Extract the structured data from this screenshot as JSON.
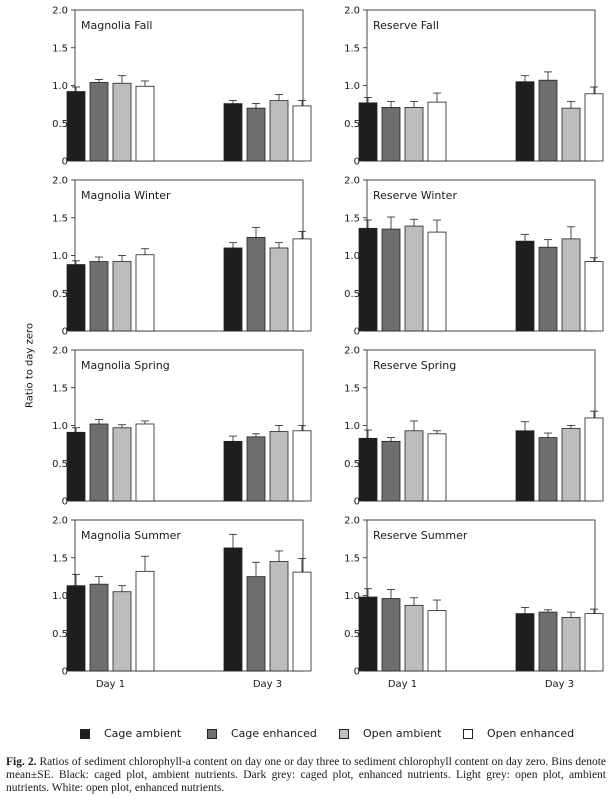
{
  "ylabel": "Ratio to day zero",
  "legend": [
    {
      "name": "Cage ambient",
      "color": "#1e1e1e"
    },
    {
      "name": "Cage enhanced",
      "color": "#6e6e6e"
    },
    {
      "name": "Open ambient",
      "color": "#bdbdbd"
    },
    {
      "name": "Open enhanced",
      "color": "#ffffff"
    }
  ],
  "caption": {
    "label": "Fig. 2.",
    "text": "Ratios of sediment chlorophyll-a content on day one or day three to sediment chlorophyll content on day zero. Bins denote mean±SE.  Black: caged plot, ambient nutrients. Dark grey: caged plot, enhanced nutrients. Light grey: open plot, ambient nutrients. White: open plot, enhanced nutrients."
  },
  "chart_data": [
    {
      "type": "bar",
      "title": "Magnolia Fall",
      "categories": [
        "Day 1",
        "Day 3"
      ],
      "ylim": [
        0,
        2.0
      ],
      "yticks": [
        "0",
        "0.5",
        "1.0",
        "1.5",
        "2.0"
      ],
      "series": [
        {
          "name": "Cage ambient",
          "values": [
            0.92,
            0.76
          ],
          "errors": [
            0.06,
            0.04
          ]
        },
        {
          "name": "Cage enhanced",
          "values": [
            1.04,
            0.7
          ],
          "errors": [
            0.04,
            0.06
          ]
        },
        {
          "name": "Open ambient",
          "values": [
            1.03,
            0.8
          ],
          "errors": [
            0.1,
            0.08
          ]
        },
        {
          "name": "Open enhanced",
          "values": [
            0.99,
            0.73
          ],
          "errors": [
            0.07,
            0.07
          ]
        }
      ]
    },
    {
      "type": "bar",
      "title": "Reserve Fall",
      "categories": [
        "Day 1",
        "Day 3"
      ],
      "ylim": [
        0,
        2.0
      ],
      "yticks": [
        "0",
        "0.5",
        "1.0",
        "1.5",
        "2.0"
      ],
      "series": [
        {
          "name": "Cage ambient",
          "values": [
            0.77,
            1.05
          ],
          "errors": [
            0.07,
            0.08
          ]
        },
        {
          "name": "Cage enhanced",
          "values": [
            0.71,
            1.07
          ],
          "errors": [
            0.08,
            0.11
          ]
        },
        {
          "name": "Open ambient",
          "values": [
            0.71,
            0.7
          ],
          "errors": [
            0.08,
            0.09
          ]
        },
        {
          "name": "Open enhanced",
          "values": [
            0.78,
            0.89
          ],
          "errors": [
            0.12,
            0.09
          ]
        }
      ]
    },
    {
      "type": "bar",
      "title": "Magnolia Winter",
      "categories": [
        "Day 1",
        "Day 3"
      ],
      "ylim": [
        0,
        2.0
      ],
      "yticks": [
        "0",
        "0.5",
        "1.0",
        "1.5",
        "2.0"
      ],
      "series": [
        {
          "name": "Cage ambient",
          "values": [
            0.88,
            1.1
          ],
          "errors": [
            0.05,
            0.07
          ]
        },
        {
          "name": "Cage enhanced",
          "values": [
            0.92,
            1.24
          ],
          "errors": [
            0.06,
            0.13
          ]
        },
        {
          "name": "Open ambient",
          "values": [
            0.92,
            1.1
          ],
          "errors": [
            0.08,
            0.07
          ]
        },
        {
          "name": "Open enhanced",
          "values": [
            1.01,
            1.22
          ],
          "errors": [
            0.08,
            0.1
          ]
        }
      ]
    },
    {
      "type": "bar",
      "title": "Reserve Winter",
      "categories": [
        "Day 1",
        "Day 3"
      ],
      "ylim": [
        0,
        2.0
      ],
      "yticks": [
        "0",
        "0.5",
        "1.0",
        "1.5",
        "2.0"
      ],
      "series": [
        {
          "name": "Cage ambient",
          "values": [
            1.36,
            1.19
          ],
          "errors": [
            0.11,
            0.09
          ]
        },
        {
          "name": "Cage enhanced",
          "values": [
            1.35,
            1.11
          ],
          "errors": [
            0.16,
            0.1
          ]
        },
        {
          "name": "Open ambient",
          "values": [
            1.39,
            1.22
          ],
          "errors": [
            0.09,
            0.16
          ]
        },
        {
          "name": "Open enhanced",
          "values": [
            1.31,
            0.92
          ],
          "errors": [
            0.16,
            0.05
          ]
        }
      ]
    },
    {
      "type": "bar",
      "title": "Magnolia Spring",
      "categories": [
        "Day 1",
        "Day 3"
      ],
      "ylim": [
        0,
        2.0
      ],
      "yticks": [
        "0",
        "0.5",
        "1.0",
        "1.5",
        "2.0"
      ],
      "series": [
        {
          "name": "Cage ambient",
          "values": [
            0.91,
            0.79
          ],
          "errors": [
            0.06,
            0.07
          ]
        },
        {
          "name": "Cage enhanced",
          "values": [
            1.02,
            0.85
          ],
          "errors": [
            0.06,
            0.04
          ]
        },
        {
          "name": "Open ambient",
          "values": [
            0.97,
            0.92
          ],
          "errors": [
            0.04,
            0.08
          ]
        },
        {
          "name": "Open enhanced",
          "values": [
            1.02,
            0.93
          ],
          "errors": [
            0.04,
            0.07
          ]
        }
      ]
    },
    {
      "type": "bar",
      "title": "Reserve Spring",
      "categories": [
        "Day 1",
        "Day 3"
      ],
      "ylim": [
        0,
        2.0
      ],
      "yticks": [
        "0",
        "0.5",
        "1.0",
        "1.5",
        "2.0"
      ],
      "series": [
        {
          "name": "Cage ambient",
          "values": [
            0.83,
            0.93
          ],
          "errors": [
            0.11,
            0.12
          ]
        },
        {
          "name": "Cage enhanced",
          "values": [
            0.79,
            0.84
          ],
          "errors": [
            0.05,
            0.06
          ]
        },
        {
          "name": "Open ambient",
          "values": [
            0.93,
            0.96
          ],
          "errors": [
            0.13,
            0.04
          ]
        },
        {
          "name": "Open enhanced",
          "values": [
            0.89,
            1.1
          ],
          "errors": [
            0.04,
            0.09
          ]
        }
      ]
    },
    {
      "type": "bar",
      "title": "Magnolia Summer",
      "categories": [
        "Day 1",
        "Day 3"
      ],
      "ylim": [
        0,
        2.0
      ],
      "yticks": [
        "0",
        "0.5",
        "1.0",
        "1.5",
        "2.0"
      ],
      "series": [
        {
          "name": "Cage ambient",
          "values": [
            1.13,
            1.63
          ],
          "errors": [
            0.15,
            0.18
          ]
        },
        {
          "name": "Cage enhanced",
          "values": [
            1.15,
            1.25
          ],
          "errors": [
            0.1,
            0.19
          ]
        },
        {
          "name": "Open ambient",
          "values": [
            1.05,
            1.45
          ],
          "errors": [
            0.08,
            0.14
          ]
        },
        {
          "name": "Open enhanced",
          "values": [
            1.32,
            1.31
          ],
          "errors": [
            0.2,
            0.18
          ]
        }
      ]
    },
    {
      "type": "bar",
      "title": "Reserve Summer",
      "categories": [
        "Day 1",
        "Day 3"
      ],
      "ylim": [
        0,
        2.0
      ],
      "yticks": [
        "0",
        "0.5",
        "1.0",
        "1.5",
        "2.0"
      ],
      "series": [
        {
          "name": "Cage ambient",
          "values": [
            0.98,
            0.76
          ],
          "errors": [
            0.11,
            0.08
          ]
        },
        {
          "name": "Cage enhanced",
          "values": [
            0.96,
            0.78
          ],
          "errors": [
            0.12,
            0.03
          ]
        },
        {
          "name": "Open ambient",
          "values": [
            0.87,
            0.71
          ],
          "errors": [
            0.1,
            0.07
          ]
        },
        {
          "name": "Open enhanced",
          "values": [
            0.8,
            0.76
          ],
          "errors": [
            0.14,
            0.06
          ]
        }
      ]
    }
  ]
}
